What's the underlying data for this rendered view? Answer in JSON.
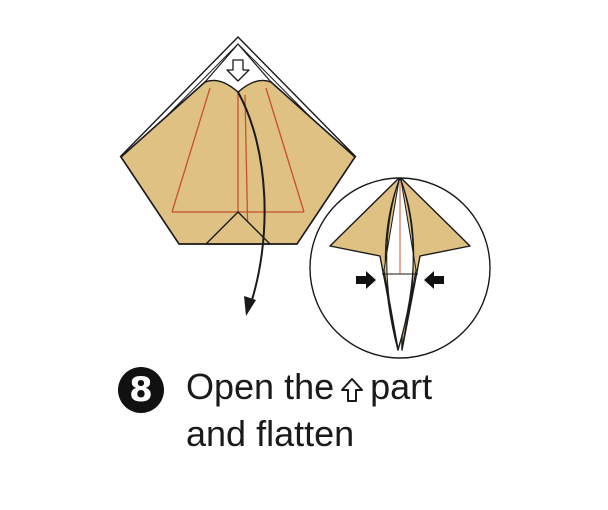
{
  "step": {
    "number": "8",
    "line1_prefix": "Open the",
    "line1_suffix": "part",
    "line2": "and flatten",
    "inline_icon": "up-arrow-outline-icon"
  },
  "colors": {
    "paper": "#dfc184",
    "crease": "#c8502a",
    "outline": "#1a1a1a",
    "background": "#ffffff"
  },
  "figures": {
    "main": "folded-paper-diamond",
    "detail": "circle-inset-flattened-result"
  }
}
